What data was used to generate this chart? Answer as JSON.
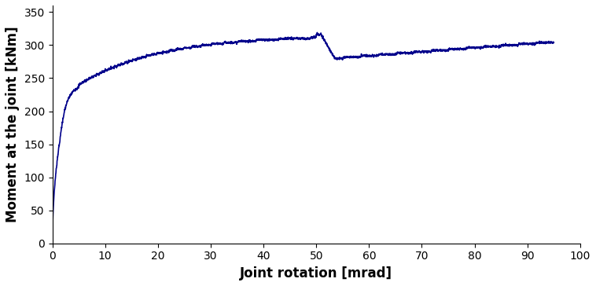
{
  "line_color": "#00008B",
  "line_width": 1.2,
  "xlabel": "Joint rotation [mrad]",
  "ylabel": "Moment at the joint [kNm]",
  "xlim": [
    0,
    100
  ],
  "ylim": [
    0,
    360
  ],
  "xticks": [
    0,
    10,
    20,
    30,
    40,
    50,
    60,
    70,
    80,
    90,
    100
  ],
  "yticks": [
    0,
    50,
    100,
    150,
    200,
    250,
    300,
    350
  ],
  "xlabel_fontsize": 12,
  "ylabel_fontsize": 12,
  "tick_fontsize": 10,
  "figsize": [
    7.58,
    3.64
  ],
  "dpi": 100
}
